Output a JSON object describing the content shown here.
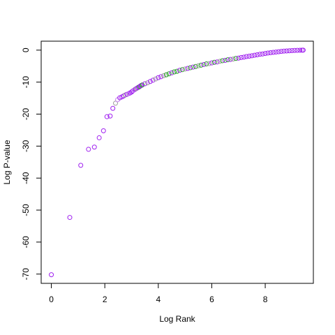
{
  "chart_data": {
    "type": "scatter",
    "title": "",
    "xlabel": "Log Rank",
    "ylabel": "Log P-value",
    "xlim": [
      -0.38,
      9.8
    ],
    "ylim": [
      -72.9,
      2.8
    ],
    "xticks": [
      0,
      2,
      4,
      6,
      8
    ],
    "yticks": [
      0,
      -10,
      -20,
      -30,
      -40,
      -50,
      -60,
      -70
    ],
    "xtick_labels": [
      "0",
      "2",
      "4",
      "6",
      "8"
    ],
    "ytick_labels": [
      "0",
      "-10",
      "-20",
      "-30",
      "-40",
      "-50",
      "-60",
      "-70"
    ],
    "marker": "open-circle",
    "grid": false,
    "colors": {
      "purple": "#a020f0",
      "light_purple": "#c77ff0",
      "green": "#2a9d2a",
      "gray": "#9a9a9a"
    },
    "points": [
      {
        "x": 0.0,
        "y": -70.2,
        "c": "purple"
      },
      {
        "x": 0.69,
        "y": -52.3,
        "c": "purple"
      },
      {
        "x": 1.1,
        "y": -36.0,
        "c": "purple"
      },
      {
        "x": 1.39,
        "y": -31.0,
        "c": "purple"
      },
      {
        "x": 1.61,
        "y": -30.3,
        "c": "purple"
      },
      {
        "x": 1.79,
        "y": -27.4,
        "c": "purple"
      },
      {
        "x": 1.95,
        "y": -25.2,
        "c": "purple"
      },
      {
        "x": 2.08,
        "y": -20.8,
        "c": "purple"
      },
      {
        "x": 2.2,
        "y": -20.6,
        "c": "purple"
      },
      {
        "x": 2.3,
        "y": -18.2,
        "c": "purple"
      },
      {
        "x": 2.4,
        "y": -16.6,
        "c": "gray"
      },
      {
        "x": 2.48,
        "y": -15.5,
        "c": "light_purple"
      },
      {
        "x": 2.56,
        "y": -14.9,
        "c": "purple"
      },
      {
        "x": 2.64,
        "y": -14.6,
        "c": "purple"
      },
      {
        "x": 2.71,
        "y": -14.3,
        "c": "purple"
      },
      {
        "x": 2.77,
        "y": -14.0,
        "c": "gray"
      },
      {
        "x": 2.83,
        "y": -13.8,
        "c": "purple"
      },
      {
        "x": 2.89,
        "y": -13.6,
        "c": "light_purple"
      },
      {
        "x": 2.94,
        "y": -13.4,
        "c": "purple"
      },
      {
        "x": 3.0,
        "y": -13.1,
        "c": "purple"
      },
      {
        "x": 3.04,
        "y": -12.8,
        "c": "purple"
      },
      {
        "x": 3.09,
        "y": -12.5,
        "c": "light_purple"
      },
      {
        "x": 3.14,
        "y": -12.2,
        "c": "purple"
      },
      {
        "x": 3.18,
        "y": -12.0,
        "c": "gray"
      },
      {
        "x": 3.22,
        "y": -11.8,
        "c": "purple"
      },
      {
        "x": 3.26,
        "y": -11.6,
        "c": "purple"
      },
      {
        "x": 3.3,
        "y": -11.4,
        "c": "green"
      },
      {
        "x": 3.33,
        "y": -11.2,
        "c": "purple"
      },
      {
        "x": 3.37,
        "y": -11.0,
        "c": "purple"
      },
      {
        "x": 3.4,
        "y": -10.9,
        "c": "green"
      },
      {
        "x": 3.5,
        "y": -10.5,
        "c": "purple"
      },
      {
        "x": 3.6,
        "y": -10.2,
        "c": "gray"
      },
      {
        "x": 3.7,
        "y": -9.8,
        "c": "purple"
      },
      {
        "x": 3.8,
        "y": -9.4,
        "c": "purple"
      },
      {
        "x": 3.9,
        "y": -9.0,
        "c": "gray"
      },
      {
        "x": 4.0,
        "y": -8.6,
        "c": "purple"
      },
      {
        "x": 4.1,
        "y": -8.3,
        "c": "purple"
      },
      {
        "x": 4.2,
        "y": -8.0,
        "c": "gray"
      },
      {
        "x": 4.3,
        "y": -7.7,
        "c": "green"
      },
      {
        "x": 4.4,
        "y": -7.4,
        "c": "green"
      },
      {
        "x": 4.5,
        "y": -7.1,
        "c": "purple"
      },
      {
        "x": 4.6,
        "y": -6.8,
        "c": "green"
      },
      {
        "x": 4.7,
        "y": -6.6,
        "c": "green"
      },
      {
        "x": 4.8,
        "y": -6.3,
        "c": "purple"
      },
      {
        "x": 4.9,
        "y": -6.1,
        "c": "green"
      },
      {
        "x": 5.0,
        "y": -5.9,
        "c": "gray"
      },
      {
        "x": 5.1,
        "y": -5.7,
        "c": "purple"
      },
      {
        "x": 5.2,
        "y": -5.5,
        "c": "green"
      },
      {
        "x": 5.3,
        "y": -5.3,
        "c": "purple"
      },
      {
        "x": 5.4,
        "y": -5.1,
        "c": "green"
      },
      {
        "x": 5.5,
        "y": -4.9,
        "c": "gray"
      },
      {
        "x": 5.6,
        "y": -4.7,
        "c": "green"
      },
      {
        "x": 5.7,
        "y": -4.5,
        "c": "purple"
      },
      {
        "x": 5.8,
        "y": -4.3,
        "c": "green"
      },
      {
        "x": 5.9,
        "y": -4.2,
        "c": "gray"
      },
      {
        "x": 6.0,
        "y": -4.0,
        "c": "purple"
      },
      {
        "x": 6.1,
        "y": -3.8,
        "c": "green"
      },
      {
        "x": 6.2,
        "y": -3.7,
        "c": "purple"
      },
      {
        "x": 6.3,
        "y": -3.5,
        "c": "gray"
      },
      {
        "x": 6.4,
        "y": -3.3,
        "c": "green"
      },
      {
        "x": 6.5,
        "y": -3.2,
        "c": "purple"
      },
      {
        "x": 6.6,
        "y": -3.0,
        "c": "green"
      },
      {
        "x": 6.7,
        "y": -2.9,
        "c": "purple"
      },
      {
        "x": 6.8,
        "y": -2.8,
        "c": "gray"
      },
      {
        "x": 6.9,
        "y": -2.6,
        "c": "green"
      },
      {
        "x": 7.0,
        "y": -2.5,
        "c": "purple"
      },
      {
        "x": 7.1,
        "y": -2.3,
        "c": "purple"
      },
      {
        "x": 7.2,
        "y": -2.2,
        "c": "purple"
      },
      {
        "x": 7.3,
        "y": -2.0,
        "c": "purple"
      },
      {
        "x": 7.4,
        "y": -1.9,
        "c": "purple"
      },
      {
        "x": 7.5,
        "y": -1.75,
        "c": "purple"
      },
      {
        "x": 7.6,
        "y": -1.6,
        "c": "purple"
      },
      {
        "x": 7.7,
        "y": -1.45,
        "c": "purple"
      },
      {
        "x": 7.8,
        "y": -1.3,
        "c": "purple"
      },
      {
        "x": 7.9,
        "y": -1.2,
        "c": "purple"
      },
      {
        "x": 8.0,
        "y": -1.05,
        "c": "purple"
      },
      {
        "x": 8.1,
        "y": -0.9,
        "c": "purple"
      },
      {
        "x": 8.2,
        "y": -0.8,
        "c": "purple"
      },
      {
        "x": 8.3,
        "y": -0.7,
        "c": "purple"
      },
      {
        "x": 8.4,
        "y": -0.6,
        "c": "purple"
      },
      {
        "x": 8.5,
        "y": -0.5,
        "c": "purple"
      },
      {
        "x": 8.6,
        "y": -0.4,
        "c": "purple"
      },
      {
        "x": 8.7,
        "y": -0.3,
        "c": "purple"
      },
      {
        "x": 8.8,
        "y": -0.25,
        "c": "purple"
      },
      {
        "x": 8.9,
        "y": -0.2,
        "c": "purple"
      },
      {
        "x": 9.0,
        "y": -0.15,
        "c": "purple"
      },
      {
        "x": 9.1,
        "y": -0.1,
        "c": "purple"
      },
      {
        "x": 9.2,
        "y": -0.07,
        "c": "purple"
      },
      {
        "x": 9.3,
        "y": -0.04,
        "c": "purple"
      },
      {
        "x": 9.38,
        "y": -0.02,
        "c": "purple"
      },
      {
        "x": 9.42,
        "y": 0.0,
        "c": "purple"
      }
    ]
  }
}
